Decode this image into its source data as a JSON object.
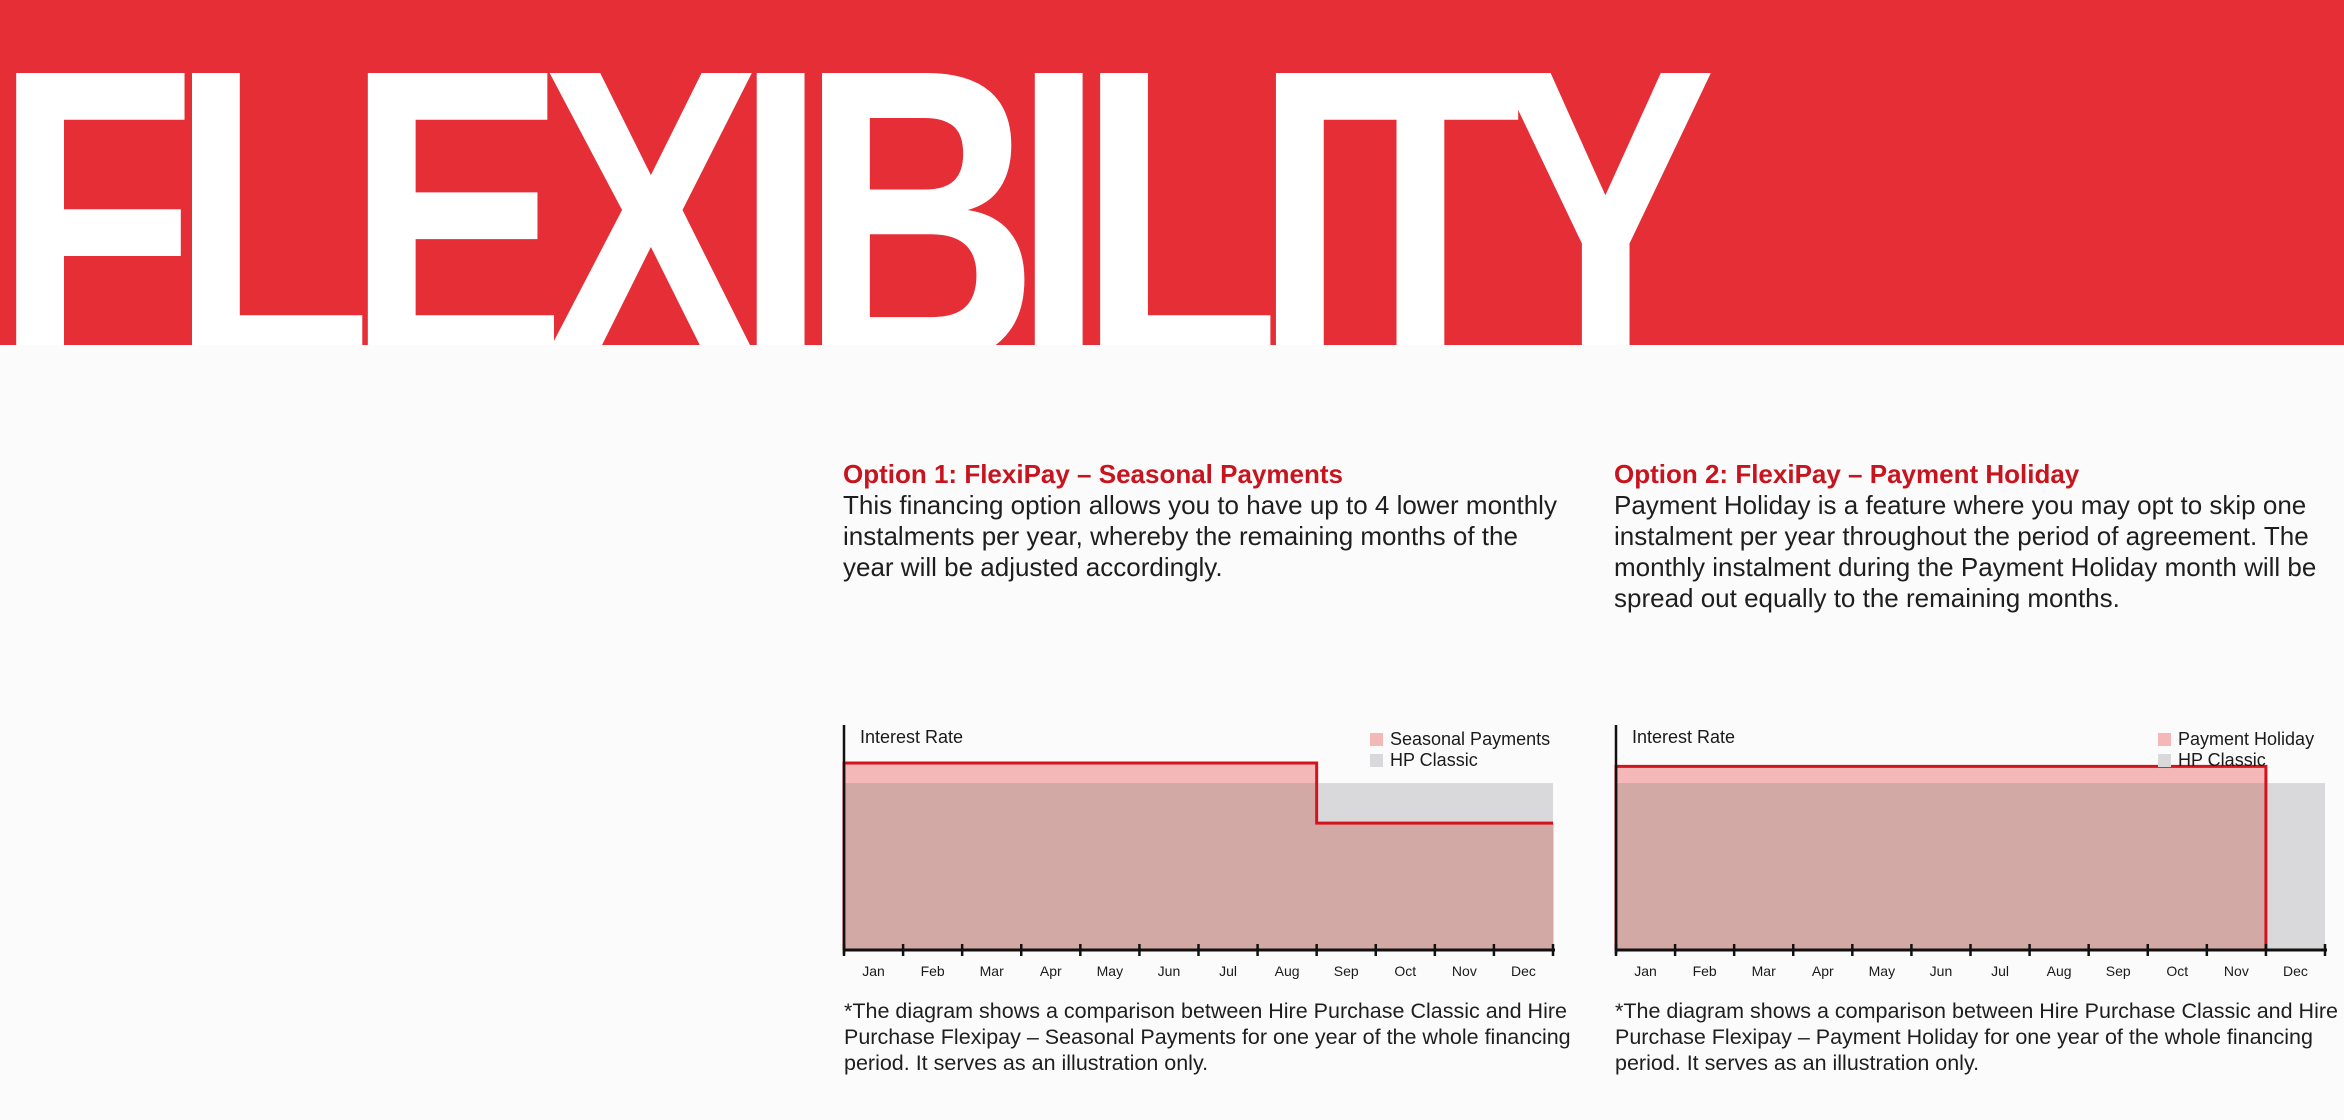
{
  "headline": "FLEXIBILITY",
  "option1": {
    "title": "Option 1: FlexiPay – Seasonal Payments",
    "body": "This financing option allows you to have up to 4 lower monthly instalments per year, whereby the remaining months of the year will be adjusted accordingly.",
    "note": "*The diagram shows a comparison between Hire Purchase Classic and Hire Purchase Flexipay – Seasonal Payments for one year of the whole financing period. It serves as an illustration only."
  },
  "option2": {
    "title": "Option 2: FlexiPay – Payment Holiday",
    "body": "Payment Holiday is a feature where you may opt to skip one instalment per year throughout the period of agreement. The monthly instalment during the Payment Holiday month will be spread out equally to the remaining months.",
    "note": "*The diagram shows a comparison between Hire Purchase Classic and Hire Purchase Flexipay – Payment Holiday for one year of the whole financing period. It serves as an illustration only."
  },
  "colors": {
    "brand_red": "#e52e36",
    "title_red": "#c8141e",
    "flexipay_fill": "#f5b8b8",
    "classic_fill": "#d9d9dc",
    "overlap_fill": "#d3a9a6",
    "step_line": "#d4141c"
  },
  "chart_data": [
    {
      "type": "area",
      "ylabel": "Interest Rate",
      "categories": [
        "Jan",
        "Feb",
        "Mar",
        "Apr",
        "May",
        "Jun",
        "Jul",
        "Aug",
        "Sep",
        "Oct",
        "Nov",
        "Dec"
      ],
      "series": [
        {
          "name": "Seasonal Payments",
          "values": [
            1.12,
            1.12,
            1.12,
            1.12,
            1.12,
            1.12,
            1.12,
            1.12,
            0.76,
            0.76,
            0.76,
            0.76
          ]
        },
        {
          "name": "HP Classic",
          "values": [
            1,
            1,
            1,
            1,
            1,
            1,
            1,
            1,
            1,
            1,
            1,
            1
          ]
        }
      ],
      "ylim": [
        0,
        1.3
      ],
      "legend_position": "top-right",
      "grid": false
    },
    {
      "type": "area",
      "ylabel": "Interest Rate",
      "categories": [
        "Jan",
        "Feb",
        "Mar",
        "Apr",
        "May",
        "Jun",
        "Jul",
        "Aug",
        "Sep",
        "Oct",
        "Nov",
        "Dec"
      ],
      "series": [
        {
          "name": "Payment Holiday",
          "values": [
            1.1,
            1.1,
            1.1,
            1.1,
            1.1,
            1.1,
            1.1,
            1.1,
            1.1,
            1.1,
            1.1,
            0.0
          ]
        },
        {
          "name": "HP Classic",
          "values": [
            1,
            1,
            1,
            1,
            1,
            1,
            1,
            1,
            1,
            1,
            1,
            1
          ]
        }
      ],
      "ylim": [
        0,
        1.3
      ],
      "legend_position": "top-right",
      "grid": false
    }
  ]
}
